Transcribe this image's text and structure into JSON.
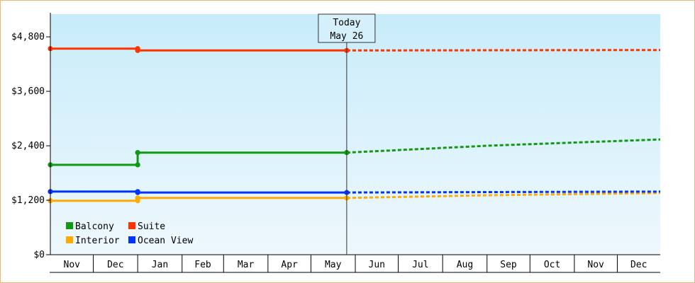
{
  "chart_data": {
    "type": "line",
    "title": "",
    "xlabel": "",
    "ylabel": "",
    "ylim": [
      0,
      5300
    ],
    "y_ticks": [
      0,
      1200,
      2400,
      3600,
      4800
    ],
    "y_tick_labels": [
      "$0",
      "$1,200",
      "$2,400",
      "$3,600",
      "$4,800"
    ],
    "x_ticks": [
      "Nov",
      "Dec",
      "Jan",
      "Feb",
      "Mar",
      "Apr",
      "May",
      "Jun",
      "Jul",
      "Aug",
      "Sep",
      "Oct",
      "Nov",
      "Dec"
    ],
    "x_range": [
      "2023-11-01",
      "2024-12-31"
    ],
    "today": {
      "date": "2024-05-26",
      "label_line1": "Today",
      "label_line2": "May 26"
    },
    "legend_position": "bottom-left",
    "grid": false,
    "series": [
      {
        "name": "Balcony",
        "color": "#119911",
        "points": [
          [
            "2023-11-01",
            1980
          ],
          [
            "2024-01-01",
            1980
          ],
          [
            "2024-01-01",
            2250
          ],
          [
            "2024-05-26",
            2250
          ]
        ],
        "forecast": [
          [
            "2024-05-26",
            2250
          ],
          [
            "2024-09-01",
            2400
          ],
          [
            "2024-12-31",
            2540
          ]
        ]
      },
      {
        "name": "Suite",
        "color": "#ff3300",
        "points": [
          [
            "2023-11-01",
            4540
          ],
          [
            "2024-01-01",
            4540
          ],
          [
            "2024-01-01",
            4500
          ],
          [
            "2024-05-26",
            4500
          ]
        ],
        "forecast": [
          [
            "2024-05-26",
            4500
          ],
          [
            "2024-12-31",
            4510
          ]
        ]
      },
      {
        "name": "Interior",
        "color": "#ffaa00",
        "points": [
          [
            "2023-11-01",
            1190
          ],
          [
            "2024-01-01",
            1190
          ],
          [
            "2024-01-01",
            1250
          ],
          [
            "2024-05-26",
            1250
          ]
        ],
        "forecast": [
          [
            "2024-05-26",
            1250
          ],
          [
            "2024-09-01",
            1310
          ],
          [
            "2024-12-31",
            1360
          ]
        ]
      },
      {
        "name": "Ocean View",
        "color": "#0033ff",
        "points": [
          [
            "2023-11-01",
            1390
          ],
          [
            "2024-01-01",
            1390
          ],
          [
            "2024-01-01",
            1370
          ],
          [
            "2024-05-26",
            1370
          ]
        ],
        "forecast": [
          [
            "2024-05-26",
            1370
          ],
          [
            "2024-12-31",
            1390
          ]
        ]
      }
    ]
  }
}
